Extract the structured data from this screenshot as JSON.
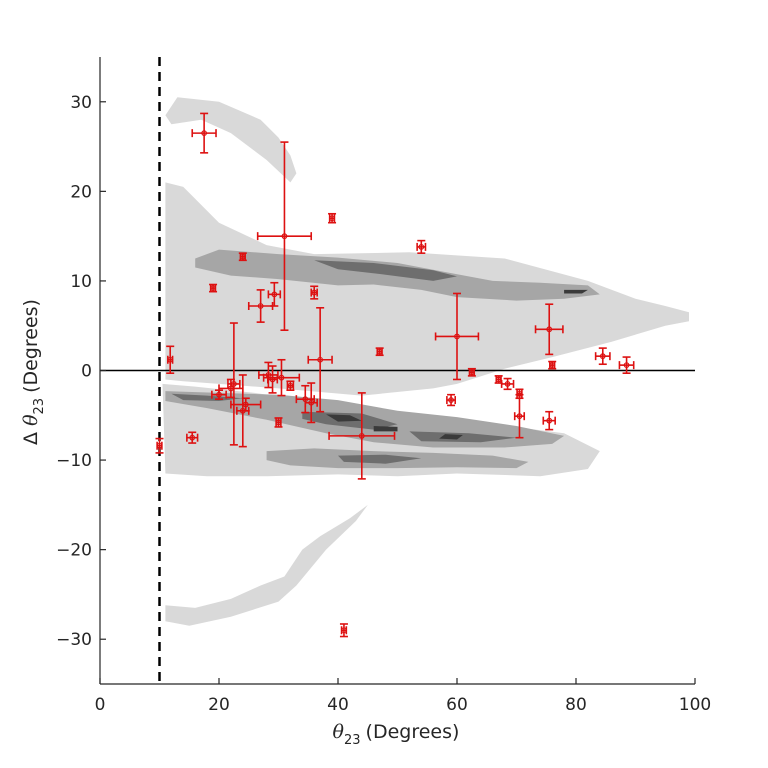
{
  "chart_data": {
    "type": "scatter",
    "title": "",
    "xlabel": {
      "symbol": "θ",
      "sub": "23",
      "unit": "(Degrees)"
    },
    "ylabel": {
      "prefix": "Δ ",
      "symbol": "θ",
      "sub": "23",
      "unit": "(Degrees)"
    },
    "xlim": [
      0,
      100
    ],
    "ylim": [
      -35,
      35
    ],
    "xticks": [
      0,
      20,
      40,
      60,
      80,
      100
    ],
    "yticks": [
      -30,
      -20,
      -10,
      0,
      10,
      20,
      30
    ],
    "grid": false,
    "legend": "none",
    "reference_lines": {
      "vertical_dashed_x": 10,
      "horizontal_solid_y": 0
    },
    "colors": {
      "points": "#dd1111",
      "density_light": "#d9d9d9",
      "density_mid": "#a6a6a6",
      "density_dark": "#6e6e6e",
      "density_darkest": "#3a3a3a",
      "axes": "#262626"
    },
    "density_regions": [
      {
        "level": 1,
        "polygon": [
          [
            11,
            28.5
          ],
          [
            13,
            30.5
          ],
          [
            20,
            30
          ],
          [
            27,
            28
          ],
          [
            30,
            26
          ],
          [
            32,
            24
          ],
          [
            33,
            22
          ],
          [
            32,
            21
          ],
          [
            28,
            23.5
          ],
          [
            22,
            26.5
          ],
          [
            17,
            28
          ],
          [
            12,
            27.5
          ]
        ]
      },
      {
        "level": 1,
        "polygon": [
          [
            11,
            21
          ],
          [
            14,
            20.5
          ],
          [
            20,
            16.5
          ],
          [
            28,
            14
          ],
          [
            36,
            13
          ],
          [
            52,
            13.2
          ],
          [
            68,
            12.5
          ],
          [
            82,
            10
          ],
          [
            90,
            8
          ],
          [
            95,
            7.2
          ],
          [
            99,
            6.5
          ],
          [
            99,
            5.5
          ],
          [
            95,
            5
          ],
          [
            86,
            3.2
          ],
          [
            76,
            1.5
          ],
          [
            68,
            0.2
          ],
          [
            60,
            -1.5
          ],
          [
            56,
            -2
          ],
          [
            44,
            -2.8
          ],
          [
            30,
            -2
          ],
          [
            22,
            -1.6
          ],
          [
            14,
            -1.2
          ],
          [
            11,
            -1
          ]
        ]
      },
      {
        "level": 1,
        "polygon": [
          [
            10.5,
            -1.5
          ],
          [
            16,
            -1.8
          ],
          [
            26,
            -2.5
          ],
          [
            36,
            -3.5
          ],
          [
            46,
            -5
          ],
          [
            56,
            -5.5
          ],
          [
            64,
            -6
          ],
          [
            72,
            -6.5
          ],
          [
            78,
            -7
          ],
          [
            84,
            -9
          ],
          [
            82,
            -11
          ],
          [
            74,
            -11.8
          ],
          [
            60,
            -11.5
          ],
          [
            50,
            -11.8
          ],
          [
            40,
            -11.6
          ],
          [
            28,
            -11.8
          ],
          [
            18,
            -11.8
          ],
          [
            11,
            -11.5
          ]
        ]
      },
      {
        "level": 1,
        "polygon": [
          [
            11,
            -26.2
          ],
          [
            16,
            -26.5
          ],
          [
            22,
            -25.5
          ],
          [
            27,
            -24
          ],
          [
            31,
            -23
          ],
          [
            34,
            -20
          ],
          [
            37,
            -18.5
          ],
          [
            42,
            -16.5
          ],
          [
            45,
            -15
          ],
          [
            43,
            -16.8
          ],
          [
            38,
            -20
          ],
          [
            33,
            -24
          ],
          [
            30,
            -25.8
          ],
          [
            22,
            -27.5
          ],
          [
            15,
            -28.5
          ],
          [
            11,
            -28
          ]
        ]
      },
      {
        "level": 2,
        "polygon": [
          [
            16,
            12.5
          ],
          [
            20,
            13.5
          ],
          [
            30,
            13
          ],
          [
            40,
            12.6
          ],
          [
            50,
            12
          ],
          [
            58,
            11
          ],
          [
            66,
            10
          ],
          [
            74,
            9.8
          ],
          [
            82,
            9.5
          ],
          [
            84,
            8.5
          ],
          [
            78,
            8
          ],
          [
            70,
            7.8
          ],
          [
            60,
            8.2
          ],
          [
            54,
            9
          ],
          [
            46,
            9.6
          ],
          [
            40,
            9.5
          ],
          [
            30,
            10.2
          ],
          [
            22,
            10.6
          ],
          [
            16,
            11.5
          ]
        ]
      },
      {
        "level": 2,
        "polygon": [
          [
            11,
            -2.3
          ],
          [
            20,
            -2.5
          ],
          [
            30,
            -2.7
          ],
          [
            40,
            -3.3
          ],
          [
            50,
            -4.5
          ],
          [
            60,
            -5.2
          ],
          [
            70,
            -6.2
          ],
          [
            78,
            -7.3
          ],
          [
            76,
            -8.2
          ],
          [
            68,
            -8.6
          ],
          [
            56,
            -8.6
          ],
          [
            46,
            -8
          ],
          [
            38,
            -7
          ],
          [
            28,
            -5.5
          ],
          [
            18,
            -4.2
          ],
          [
            11,
            -3.4
          ]
        ]
      },
      {
        "level": 2,
        "polygon": [
          [
            28,
            -9
          ],
          [
            36,
            -8.7
          ],
          [
            46,
            -9
          ],
          [
            56,
            -9.2
          ],
          [
            66,
            -9.5
          ],
          [
            72,
            -10.2
          ],
          [
            70,
            -10.9
          ],
          [
            60,
            -10.8
          ],
          [
            50,
            -10.9
          ],
          [
            40,
            -10.9
          ],
          [
            32,
            -10.6
          ],
          [
            28,
            -10
          ]
        ]
      },
      {
        "level": 3,
        "polygon": [
          [
            36,
            12.3
          ],
          [
            46,
            12
          ],
          [
            56,
            11.2
          ],
          [
            60,
            10.5
          ],
          [
            56,
            10
          ],
          [
            48,
            10.7
          ],
          [
            40,
            11.3
          ]
        ]
      },
      {
        "level": 3,
        "polygon": [
          [
            12,
            -2.6
          ],
          [
            18,
            -2.8
          ],
          [
            24,
            -3.1
          ],
          [
            20,
            -3.4
          ],
          [
            14,
            -3.3
          ]
        ]
      },
      {
        "level": 3,
        "polygon": [
          [
            34,
            -4.6
          ],
          [
            44,
            -4.8
          ],
          [
            50,
            -6
          ],
          [
            46,
            -6.6
          ],
          [
            38,
            -6
          ],
          [
            34,
            -5.4
          ]
        ]
      },
      {
        "level": 3,
        "polygon": [
          [
            52,
            -6.8
          ],
          [
            62,
            -7
          ],
          [
            70,
            -7.5
          ],
          [
            64,
            -8
          ],
          [
            54,
            -7.9
          ]
        ]
      },
      {
        "level": 3,
        "polygon": [
          [
            40,
            -9.5
          ],
          [
            48,
            -9.4
          ],
          [
            54,
            -9.8
          ],
          [
            48,
            -10.4
          ],
          [
            41,
            -10.2
          ]
        ]
      },
      {
        "level": 4,
        "polygon": [
          [
            38,
            -4.9
          ],
          [
            42,
            -5
          ],
          [
            44,
            -5.6
          ],
          [
            40,
            -5.7
          ]
        ]
      },
      {
        "level": 4,
        "polygon": [
          [
            46,
            -6.2
          ],
          [
            50,
            -6.3
          ],
          [
            50,
            -6.8
          ],
          [
            46,
            -6.8
          ]
        ]
      },
      {
        "level": 4,
        "polygon": [
          [
            58,
            -7.1
          ],
          [
            61,
            -7.2
          ],
          [
            60,
            -7.7
          ],
          [
            57,
            -7.6
          ]
        ]
      },
      {
        "level": 4,
        "polygon": [
          [
            78,
            9
          ],
          [
            82,
            9
          ],
          [
            81,
            8.6
          ],
          [
            78,
            8.6
          ]
        ]
      }
    ],
    "points": [
      {
        "x": 17.5,
        "y": 26.5,
        "xerr": 2,
        "yerr": 2.2
      },
      {
        "x": 31,
        "y": 15,
        "xerr": 4.5,
        "yerr": 10.5
      },
      {
        "x": 39,
        "y": 17,
        "xerr": 0.4,
        "yerr": 0.5
      },
      {
        "x": 24,
        "y": 12.7,
        "xerr": 0.4,
        "yerr": 0.4
      },
      {
        "x": 54,
        "y": 13.8,
        "xerr": 0.7,
        "yerr": 0.7
      },
      {
        "x": 19,
        "y": 9.2,
        "xerr": 0.4,
        "yerr": 0.4
      },
      {
        "x": 27,
        "y": 7.2,
        "xerr": 2,
        "yerr": 1.8
      },
      {
        "x": 29.3,
        "y": 8.5,
        "xerr": 1,
        "yerr": 1.3
      },
      {
        "x": 36,
        "y": 8.7,
        "xerr": 0.5,
        "yerr": 0.7
      },
      {
        "x": 11.8,
        "y": 1.2,
        "xerr": 0.4,
        "yerr": 1.5
      },
      {
        "x": 37,
        "y": 1.2,
        "xerr": 2,
        "yerr": 5.8
      },
      {
        "x": 47,
        "y": 2.1,
        "xerr": 0.4,
        "yerr": 0.4
      },
      {
        "x": 60,
        "y": 3.8,
        "xerr": 3.6,
        "yerr": 4.8
      },
      {
        "x": 75.5,
        "y": 4.6,
        "xerr": 2.3,
        "yerr": 2.8
      },
      {
        "x": 76,
        "y": 0.6,
        "xerr": 0.4,
        "yerr": 0.4
      },
      {
        "x": 84.5,
        "y": 1.6,
        "xerr": 1.2,
        "yerr": 0.9
      },
      {
        "x": 88.5,
        "y": 0.6,
        "xerr": 1.2,
        "yerr": 0.9
      },
      {
        "x": 22.5,
        "y": -1.5,
        "xerr": 1,
        "yerr": 6.8
      },
      {
        "x": 24,
        "y": -4.5,
        "xerr": 1,
        "yerr": 4
      },
      {
        "x": 22,
        "y": -2,
        "xerr": 2,
        "yerr": 1
      },
      {
        "x": 20,
        "y": -2.7,
        "xerr": 1.2,
        "yerr": 0.5
      },
      {
        "x": 24.5,
        "y": -3.8,
        "xerr": 2.5,
        "yerr": 0.7
      },
      {
        "x": 28.3,
        "y": -0.5,
        "xerr": 1.6,
        "yerr": 1.4
      },
      {
        "x": 29,
        "y": -1,
        "xerr": 0.8,
        "yerr": 1.5
      },
      {
        "x": 30.5,
        "y": -0.8,
        "xerr": 3,
        "yerr": 2
      },
      {
        "x": 32,
        "y": -1.7,
        "xerr": 0.5,
        "yerr": 0.5
      },
      {
        "x": 30,
        "y": -5.8,
        "xerr": 0.4,
        "yerr": 0.5
      },
      {
        "x": 34.5,
        "y": -3.2,
        "xerr": 1.5,
        "yerr": 1.5
      },
      {
        "x": 35.5,
        "y": -3.6,
        "xerr": 1,
        "yerr": 2.2
      },
      {
        "x": 44,
        "y": -7.3,
        "xerr": 5.5,
        "yerr": 4.8
      },
      {
        "x": 59,
        "y": -3.3,
        "xerr": 0.7,
        "yerr": 0.6
      },
      {
        "x": 62.5,
        "y": -0.2,
        "xerr": 0.4,
        "yerr": 0.4
      },
      {
        "x": 67,
        "y": -1,
        "xerr": 0.4,
        "yerr": 0.4
      },
      {
        "x": 68.5,
        "y": -1.5,
        "xerr": 1,
        "yerr": 0.6
      },
      {
        "x": 70.5,
        "y": -2.6,
        "xerr": 0.4,
        "yerr": 0.5
      },
      {
        "x": 70.5,
        "y": -5.1,
        "xerr": 0.8,
        "yerr": 2.4
      },
      {
        "x": 75.5,
        "y": -5.6,
        "xerr": 1,
        "yerr": 1
      },
      {
        "x": 10,
        "y": -8.4,
        "xerr": 0.4,
        "yerr": 0.8
      },
      {
        "x": 15.5,
        "y": -7.5,
        "xerr": 0.9,
        "yerr": 0.6
      },
      {
        "x": 41,
        "y": -29,
        "xerr": 0.4,
        "yerr": 0.7
      }
    ]
  }
}
